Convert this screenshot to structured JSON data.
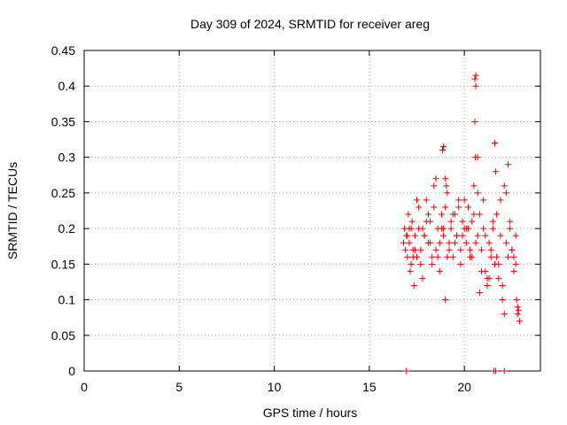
{
  "chart_data": {
    "type": "scatter",
    "title": "Day 309 of 2024, SRMTID for receiver areg",
    "xlabel": "GPS time / hours",
    "ylabel": "SRMTID / TECUs",
    "xlim": [
      0,
      24
    ],
    "ylim": [
      0,
      0.45
    ],
    "xticks": [
      0,
      5,
      10,
      15,
      20
    ],
    "xtick_labels": [
      "0",
      "5",
      "10",
      "15",
      "20"
    ],
    "yticks": [
      0,
      0.05,
      0.1,
      0.15,
      0.2,
      0.25,
      0.3,
      0.35,
      0.4,
      0.45
    ],
    "ytick_labels": [
      "0",
      "0.05",
      "0.1",
      "0.15",
      "0.2",
      "0.25",
      "0.3",
      "0.35",
      "0.4",
      "0.45"
    ],
    "grid": true,
    "marker": "plus",
    "color": "#e00000",
    "series": [
      {
        "name": "SRMTID",
        "x": [
          16.8,
          16.85,
          16.9,
          16.95,
          17.0,
          17.05,
          17.1,
          17.15,
          17.2,
          17.25,
          17.3,
          17.35,
          17.4,
          17.5,
          17.6,
          17.7,
          17.8,
          17.9,
          18.0,
          18.1,
          18.2,
          18.3,
          18.4,
          18.5,
          18.6,
          18.7,
          18.8,
          18.85,
          18.9,
          19.0,
          19.1,
          19.2,
          19.3,
          19.4,
          19.5,
          19.6,
          19.7,
          19.8,
          19.9,
          20.0,
          20.1,
          20.2,
          20.3,
          20.4,
          20.5,
          20.55,
          20.6,
          20.7,
          20.8,
          20.9,
          21.0,
          21.1,
          21.2,
          21.3,
          21.4,
          21.5,
          21.6,
          21.7,
          21.8,
          21.9,
          22.0,
          22.1,
          22.2,
          22.3,
          22.4,
          22.5,
          22.6,
          22.7,
          22.75,
          22.8,
          17.0,
          17.2,
          17.4,
          17.6,
          17.8,
          18.0,
          18.2,
          18.4,
          18.6,
          18.8,
          19.0,
          19.2,
          19.4,
          19.6,
          19.8,
          20.0,
          20.2,
          20.4,
          20.6,
          20.8,
          21.0,
          21.2,
          21.4,
          21.6,
          21.8,
          22.0,
          22.2,
          22.4,
          22.6,
          17.1,
          17.3,
          17.5,
          17.7,
          17.9,
          18.1,
          18.3,
          18.5,
          18.7,
          18.9,
          19.1,
          19.3,
          19.5,
          19.7,
          19.9,
          20.1,
          20.3,
          20.5,
          20.7,
          20.9,
          21.1,
          21.3,
          21.5,
          21.7,
          21.9,
          22.1,
          22.3,
          22.5,
          22.7,
          18.85,
          18.9,
          20.55,
          20.6,
          20.58,
          21.6,
          21.65,
          20.7,
          19.0,
          19.05,
          22.9,
          22.85,
          22.8,
          21.55,
          22.1,
          16.95,
          21.65
        ],
        "y": [
          0.18,
          0.2,
          0.17,
          0.19,
          0.16,
          0.22,
          0.18,
          0.14,
          0.2,
          0.21,
          0.17,
          0.12,
          0.19,
          0.16,
          0.23,
          0.15,
          0.2,
          0.19,
          0.24,
          0.18,
          0.21,
          0.16,
          0.26,
          0.17,
          0.2,
          0.14,
          0.22,
          0.31,
          0.19,
          0.23,
          0.25,
          0.18,
          0.2,
          0.16,
          0.22,
          0.19,
          0.24,
          0.17,
          0.21,
          0.2,
          0.18,
          0.23,
          0.16,
          0.21,
          0.26,
          0.35,
          0.4,
          0.19,
          0.22,
          0.17,
          0.24,
          0.14,
          0.12,
          0.18,
          0.16,
          0.2,
          0.15,
          0.22,
          0.13,
          0.19,
          0.1,
          0.26,
          0.18,
          0.16,
          0.2,
          0.17,
          0.14,
          0.19,
          0.1,
          0.09,
          0.19,
          0.15,
          0.17,
          0.2,
          0.13,
          0.21,
          0.18,
          0.23,
          0.16,
          0.2,
          0.1,
          0.17,
          0.22,
          0.19,
          0.15,
          0.24,
          0.2,
          0.16,
          0.18,
          0.11,
          0.2,
          0.13,
          0.17,
          0.32,
          0.15,
          0.12,
          0.25,
          0.21,
          0.16,
          0.2,
          0.16,
          0.24,
          0.17,
          0.19,
          0.22,
          0.15,
          0.27,
          0.18,
          0.2,
          0.16,
          0.21,
          0.18,
          0.23,
          0.19,
          0.2,
          0.17,
          0.22,
          0.25,
          0.14,
          0.19,
          0.13,
          0.21,
          0.16,
          0.24,
          0.08,
          0.29,
          0.17,
          0.15,
          0.31,
          0.315,
          0.41,
          0.415,
          0.3,
          0.32,
          0.28,
          0.3,
          0.27,
          0.26,
          0.07,
          0.085,
          0.08,
          0.0,
          0.0,
          0.0,
          0.0
        ]
      }
    ]
  }
}
